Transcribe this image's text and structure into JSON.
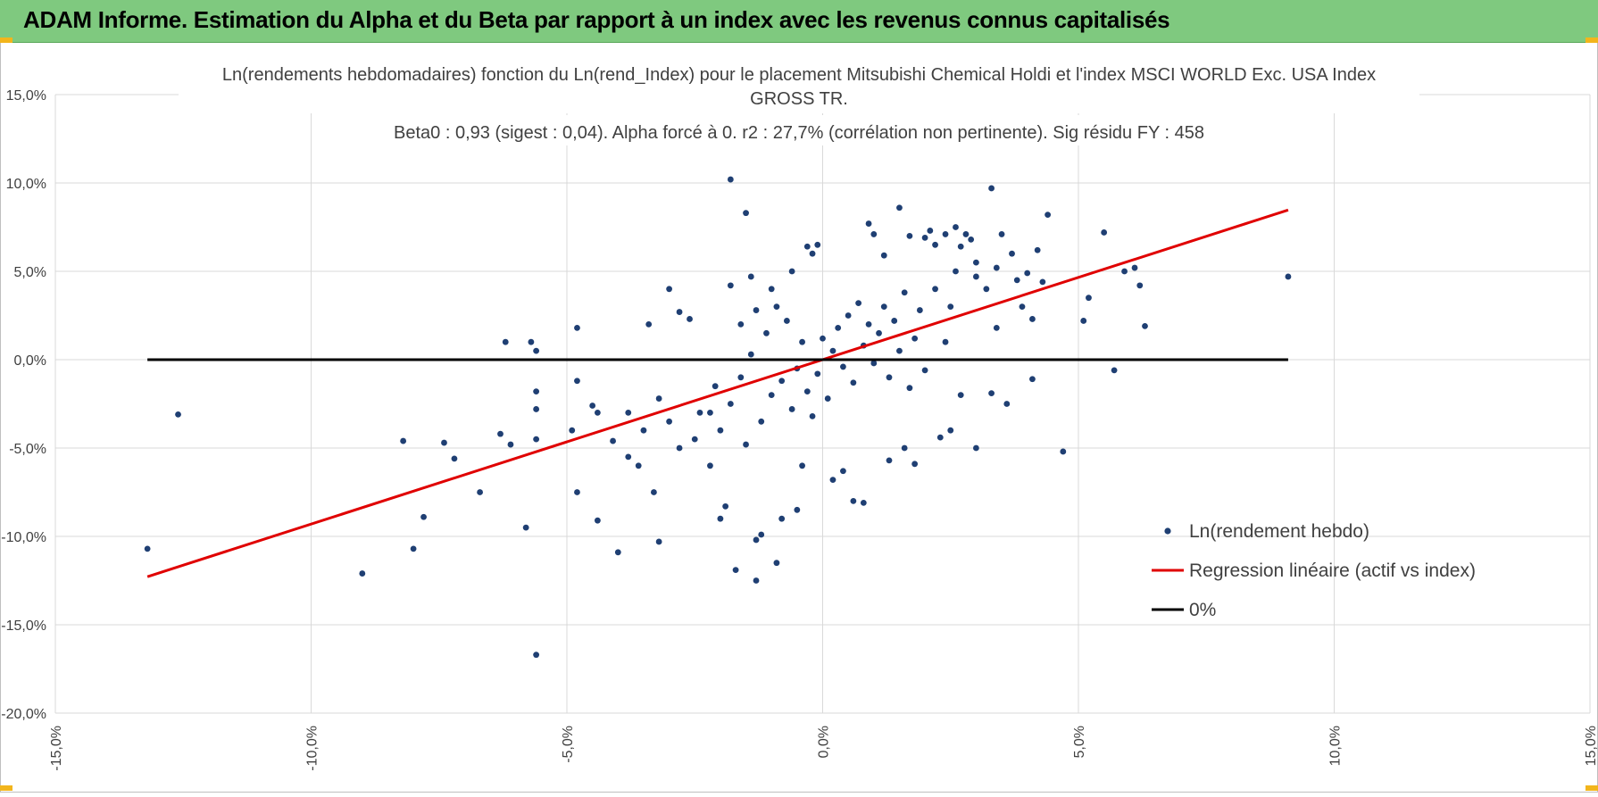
{
  "banner": {
    "title": "ADAM Informe. Estimation du Alpha et du Beta par rapport à un index avec les revenus connus capitalisés",
    "color": "#7fc97f"
  },
  "chart_data": {
    "type": "scatter",
    "title_line1": "Ln(rendements hebdomadaires) fonction du Ln(rend_Index) pour le placement Mitsubishi Chemical Holdi et l'index MSCI WORLD Exc. USA Index",
    "title_line2": "GROSS TR.",
    "subtitle": "Beta0 : 0,93 (sigest : 0,04). Alpha forcé à 0. r2 : 27,7% (corrélation non pertinente). Sig résidu FY : 458",
    "xlim": [
      -0.15,
      0.15
    ],
    "ylim": [
      -0.2,
      0.15
    ],
    "x_ticks": [
      -0.15,
      -0.1,
      -0.05,
      0.0,
      0.05,
      0.1,
      0.15
    ],
    "x_tick_labels": [
      "-15,0%",
      "-10,0%",
      "-5,0%",
      "0,0%",
      "5,0%",
      "10,0%",
      "15,0%"
    ],
    "y_ticks": [
      0.15,
      0.1,
      0.05,
      0.0,
      -0.05,
      -0.1,
      -0.15,
      -0.2
    ],
    "y_tick_labels": [
      "15,0%",
      "10,0%",
      "5,0%",
      "0,0%",
      "-5,0%",
      "-10,0%",
      "-15,0%",
      "-20,0%"
    ],
    "grid": true,
    "legend_position": "bottom-right",
    "series": [
      {
        "name": "Ln(rendement hebdo)",
        "kind": "scatter",
        "color": "#1f3f73",
        "points": [
          [
            -0.132,
            -0.107
          ],
          [
            -0.126,
            -0.031
          ],
          [
            -0.09,
            -0.121
          ],
          [
            -0.082,
            -0.046
          ],
          [
            -0.08,
            -0.107
          ],
          [
            -0.078,
            -0.089
          ],
          [
            -0.074,
            -0.047
          ],
          [
            -0.072,
            -0.056
          ],
          [
            -0.067,
            -0.075
          ],
          [
            -0.063,
            -0.042
          ],
          [
            -0.062,
            0.01
          ],
          [
            -0.061,
            -0.048
          ],
          [
            -0.058,
            -0.095
          ],
          [
            -0.057,
            0.01
          ],
          [
            -0.056,
            0.005
          ],
          [
            -0.056,
            -0.018
          ],
          [
            -0.056,
            -0.028
          ],
          [
            -0.056,
            -0.045
          ],
          [
            -0.056,
            -0.167
          ],
          [
            -0.049,
            -0.04
          ],
          [
            -0.048,
            -0.012
          ],
          [
            -0.048,
            0.018
          ],
          [
            -0.048,
            -0.075
          ],
          [
            -0.045,
            -0.026
          ],
          [
            -0.044,
            -0.03
          ],
          [
            -0.044,
            -0.091
          ],
          [
            -0.041,
            -0.046
          ],
          [
            -0.04,
            -0.109
          ],
          [
            -0.038,
            -0.055
          ],
          [
            -0.034,
            0.02
          ],
          [
            -0.033,
            -0.075
          ],
          [
            -0.032,
            -0.103
          ],
          [
            -0.03,
            0.04
          ],
          [
            -0.028,
            0.027
          ],
          [
            -0.026,
            0.023
          ],
          [
            -0.022,
            -0.03
          ],
          [
            -0.02,
            -0.09
          ],
          [
            -0.019,
            -0.083
          ],
          [
            -0.018,
            0.042
          ],
          [
            -0.018,
            0.102
          ],
          [
            -0.017,
            -0.119
          ],
          [
            -0.015,
            0.083
          ],
          [
            -0.014,
            0.047
          ],
          [
            -0.013,
            -0.125
          ],
          [
            -0.013,
            -0.102
          ],
          [
            -0.012,
            -0.099
          ],
          [
            -0.01,
            0.04
          ],
          [
            -0.009,
            -0.115
          ],
          [
            -0.008,
            -0.09
          ],
          [
            -0.006,
            0.05
          ],
          [
            -0.005,
            -0.085
          ],
          [
            -0.004,
            -0.06
          ],
          [
            -0.003,
            0.064
          ],
          [
            -0.002,
            0.06
          ],
          [
            -0.001,
            0.065
          ],
          [
            0.002,
            -0.068
          ],
          [
            0.004,
            -0.063
          ],
          [
            0.006,
            -0.08
          ],
          [
            0.008,
            -0.081
          ],
          [
            0.009,
            0.077
          ],
          [
            0.01,
            0.071
          ],
          [
            0.012,
            0.059
          ],
          [
            0.013,
            -0.057
          ],
          [
            0.015,
            0.086
          ],
          [
            0.016,
            -0.05
          ],
          [
            0.017,
            0.07
          ],
          [
            0.018,
            -0.059
          ],
          [
            0.02,
            0.069
          ],
          [
            0.021,
            0.073
          ],
          [
            0.022,
            0.065
          ],
          [
            0.023,
            -0.044
          ],
          [
            0.024,
            0.071
          ],
          [
            0.025,
            -0.04
          ],
          [
            0.026,
            0.075
          ],
          [
            0.027,
            0.064
          ],
          [
            0.028,
            0.071
          ],
          [
            0.029,
            0.068
          ],
          [
            0.03,
            0.055
          ],
          [
            0.03,
            0.047
          ],
          [
            0.03,
            -0.05
          ],
          [
            0.032,
            0.04
          ],
          [
            0.033,
            -0.019
          ],
          [
            0.033,
            0.097
          ],
          [
            0.034,
            0.052
          ],
          [
            0.034,
            0.018
          ],
          [
            0.035,
            0.071
          ],
          [
            0.036,
            -0.025
          ],
          [
            0.037,
            0.06
          ],
          [
            0.038,
            0.045
          ],
          [
            0.039,
            0.03
          ],
          [
            0.04,
            0.049
          ],
          [
            0.041,
            0.023
          ],
          [
            0.041,
            -0.011
          ],
          [
            0.042,
            0.062
          ],
          [
            0.043,
            0.044
          ],
          [
            0.044,
            0.082
          ],
          [
            0.047,
            -0.052
          ],
          [
            0.051,
            0.022
          ],
          [
            0.052,
            0.035
          ],
          [
            0.055,
            0.072
          ],
          [
            0.057,
            -0.006
          ],
          [
            0.059,
            0.05
          ],
          [
            0.061,
            0.052
          ],
          [
            0.062,
            0.042
          ],
          [
            0.063,
            0.019
          ],
          [
            0.091,
            0.047
          ],
          [
            -0.012,
            -0.035
          ],
          [
            -0.01,
            -0.02
          ],
          [
            -0.008,
            -0.012
          ],
          [
            -0.006,
            -0.028
          ],
          [
            -0.005,
            -0.005
          ],
          [
            -0.004,
            0.01
          ],
          [
            -0.003,
            -0.018
          ],
          [
            -0.002,
            -0.032
          ],
          [
            -0.001,
            -0.008
          ],
          [
            0.0,
            0.012
          ],
          [
            0.001,
            -0.022
          ],
          [
            0.002,
            0.005
          ],
          [
            0.003,
            0.018
          ],
          [
            0.004,
            -0.004
          ],
          [
            0.005,
            0.025
          ],
          [
            0.006,
            -0.013
          ],
          [
            0.007,
            0.032
          ],
          [
            0.008,
            0.008
          ],
          [
            0.009,
            0.02
          ],
          [
            0.01,
            -0.002
          ],
          [
            0.011,
            0.015
          ],
          [
            0.012,
            0.03
          ],
          [
            0.013,
            -0.01
          ],
          [
            0.014,
            0.022
          ],
          [
            0.015,
            0.005
          ],
          [
            0.016,
            0.038
          ],
          [
            0.017,
            -0.016
          ],
          [
            0.018,
            0.012
          ],
          [
            0.019,
            0.028
          ],
          [
            0.02,
            -0.006
          ],
          [
            -0.02,
            -0.04
          ],
          [
            -0.018,
            -0.025
          ],
          [
            -0.016,
            -0.01
          ],
          [
            -0.015,
            -0.048
          ],
          [
            -0.014,
            0.003
          ],
          [
            -0.025,
            -0.045
          ],
          [
            -0.024,
            -0.03
          ],
          [
            -0.022,
            -0.06
          ],
          [
            -0.021,
            -0.015
          ],
          [
            -0.028,
            -0.05
          ],
          [
            -0.03,
            -0.035
          ],
          [
            -0.032,
            -0.022
          ],
          [
            -0.035,
            -0.04
          ],
          [
            -0.036,
            -0.06
          ],
          [
            -0.038,
            -0.03
          ],
          [
            0.022,
            0.04
          ],
          [
            0.024,
            0.01
          ],
          [
            0.025,
            0.03
          ],
          [
            0.026,
            0.05
          ],
          [
            0.027,
            -0.02
          ],
          [
            -0.009,
            0.03
          ],
          [
            -0.007,
            0.022
          ],
          [
            -0.011,
            0.015
          ],
          [
            -0.013,
            0.028
          ],
          [
            -0.016,
            0.02
          ]
        ]
      },
      {
        "name": "Regression linéaire (actif vs index)",
        "kind": "line",
        "color": "#e00000",
        "points": [
          [
            -0.132,
            -0.1228
          ],
          [
            0.091,
            0.0847
          ]
        ]
      },
      {
        "name": "0%",
        "kind": "line",
        "color": "#000000",
        "points": [
          [
            -0.132,
            0.0
          ],
          [
            0.091,
            0.0
          ]
        ]
      }
    ]
  }
}
